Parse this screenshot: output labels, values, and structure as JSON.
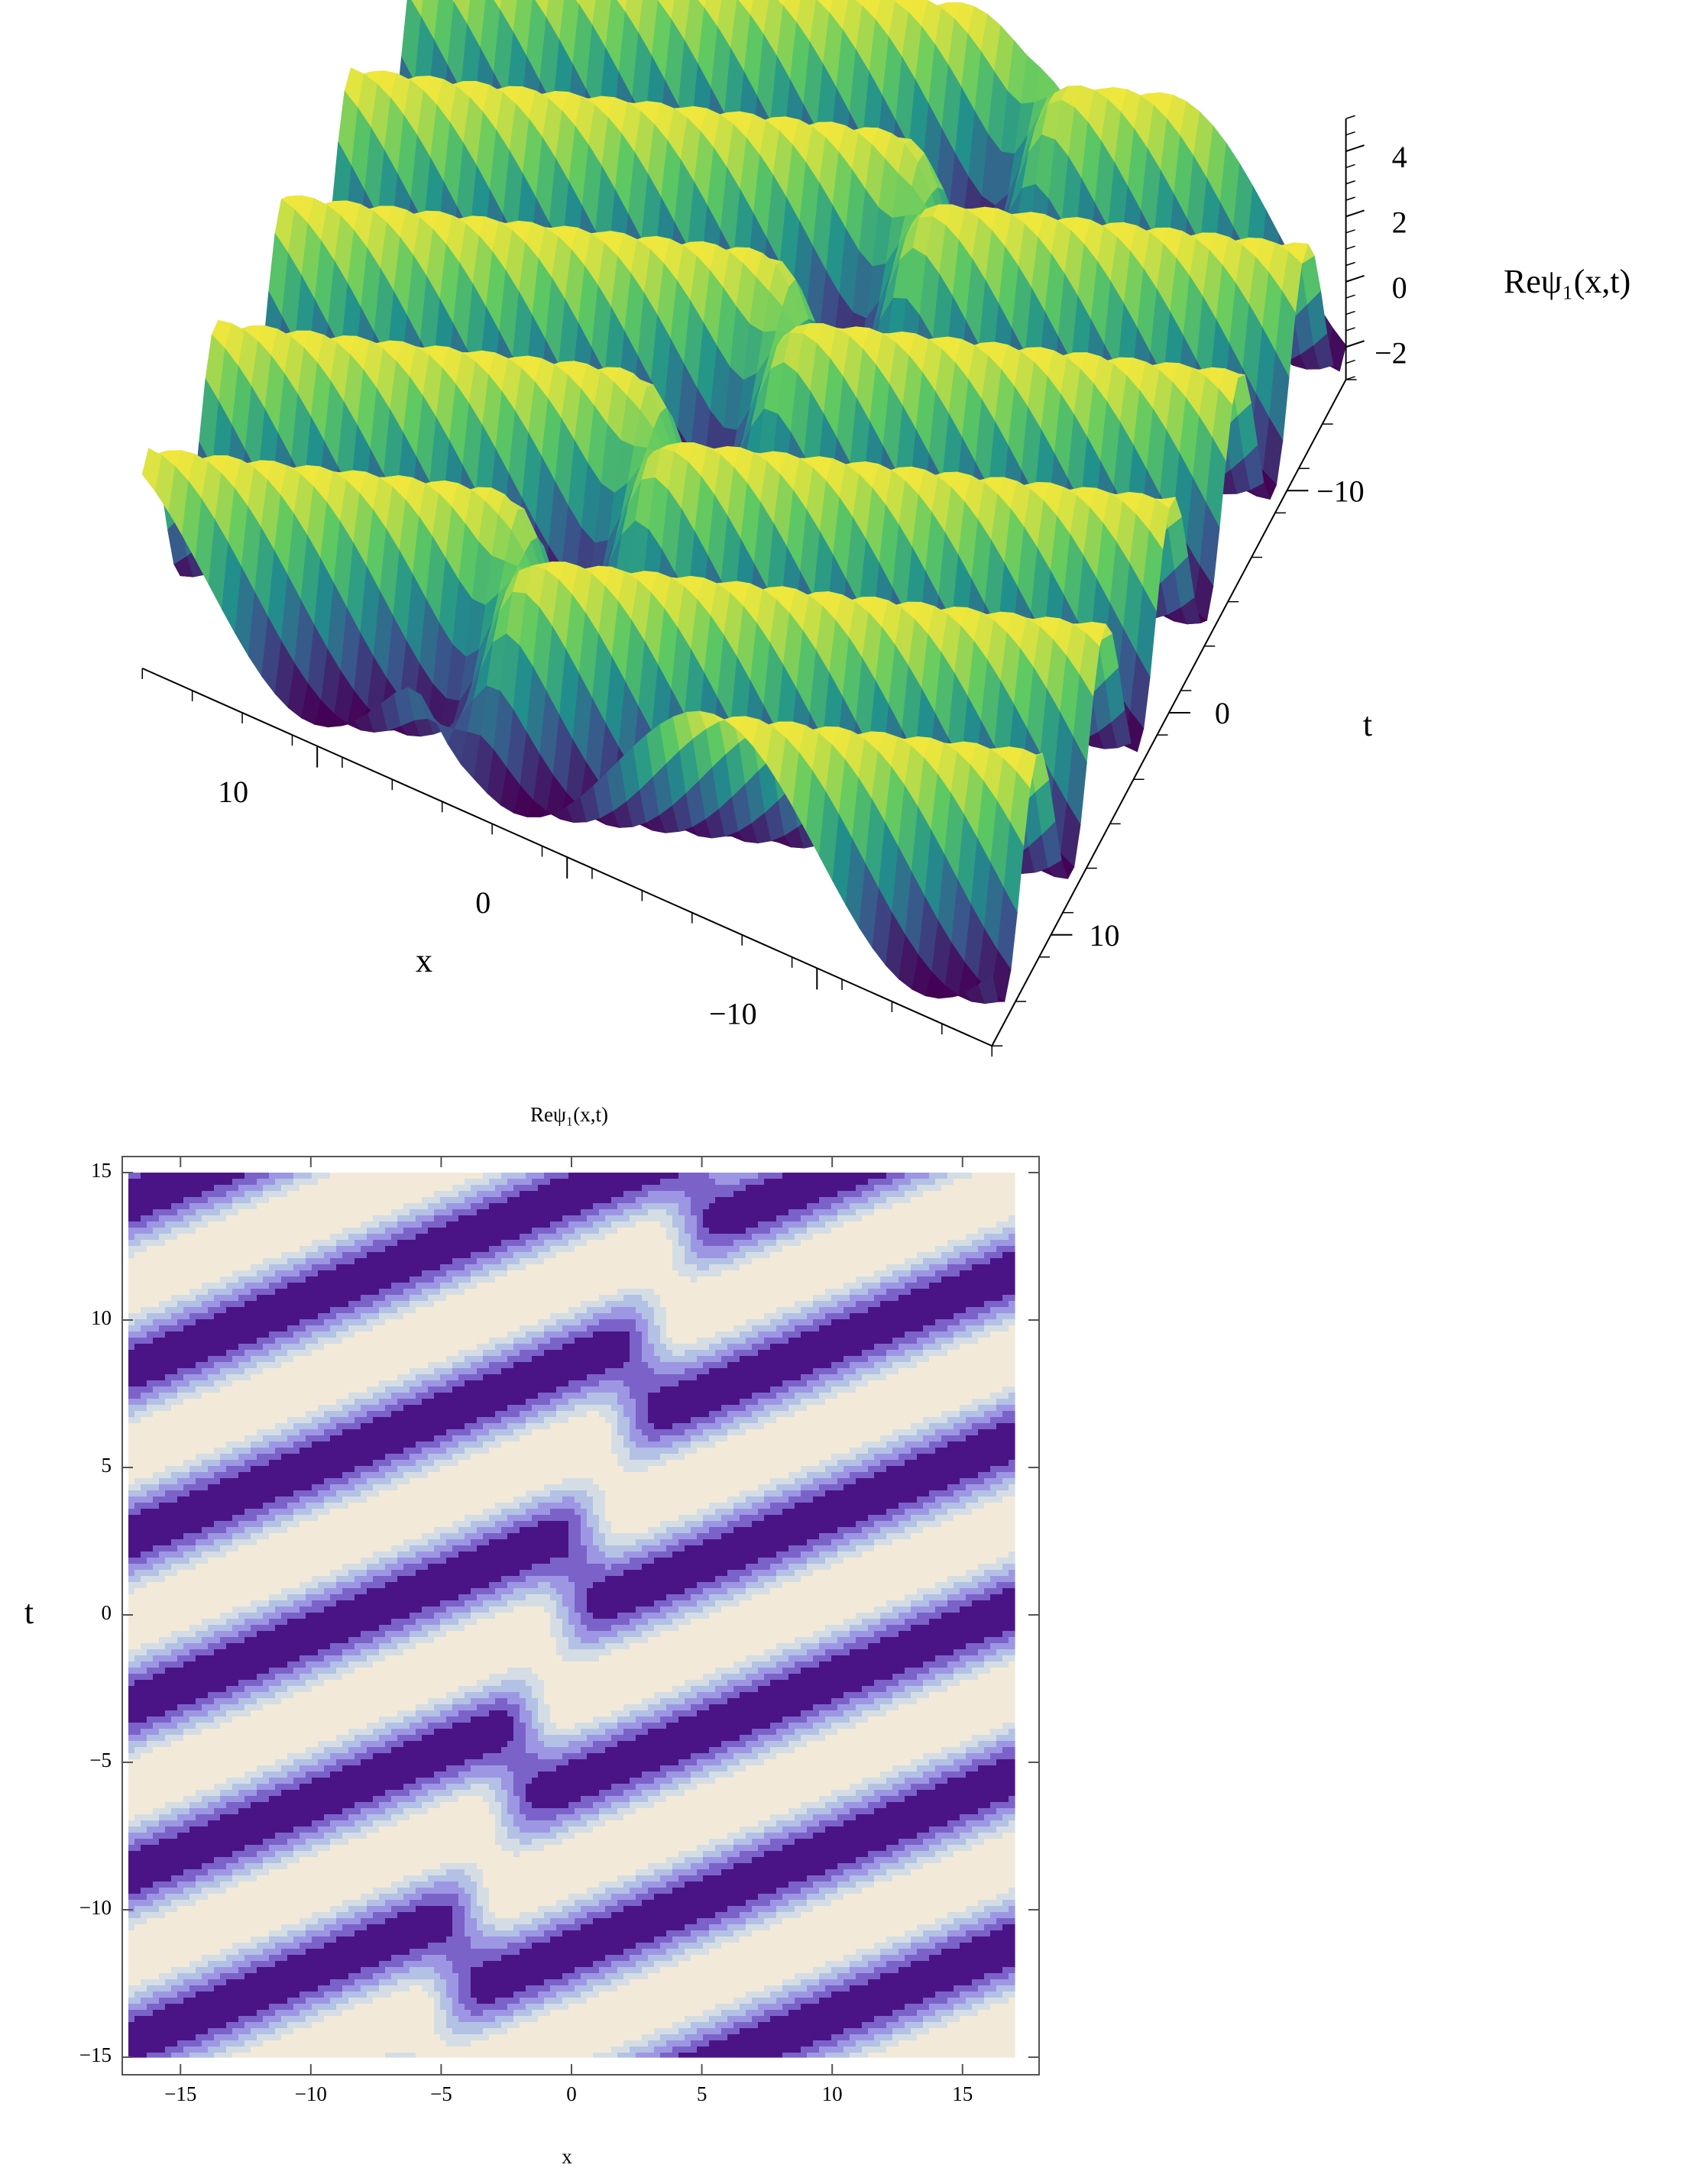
{
  "chart_data": [
    {
      "type": "surface",
      "xlabel": "x",
      "ylabel": "t",
      "zlabel": "Reψ₁(x,t)",
      "xlim": [
        -17,
        17
      ],
      "ylim": [
        -15,
        15
      ],
      "zlim": [
        -3,
        5
      ],
      "xticks": [
        {
          "value": -10,
          "label": "−10"
        },
        0,
        10
      ],
      "yticks": [
        {
          "value": -10,
          "label": "−10"
        },
        0,
        10
      ],
      "zticks": [
        {
          "value": -2,
          "label": "−2"
        },
        0,
        2,
        4
      ]
    },
    {
      "type": "contour",
      "title": "Reψ₁(x,t)",
      "xlabel": "x",
      "ylabel": "t",
      "xlim": [
        -17,
        17
      ],
      "ylim": [
        -15,
        15
      ],
      "xticks": [
        {
          "value": -15,
          "label": "−15"
        },
        {
          "value": -10,
          "label": "−10"
        },
        {
          "value": -5,
          "label": "−5"
        },
        0,
        5,
        10,
        15
      ],
      "yticks": [
        {
          "value": -15,
          "label": "−15"
        },
        {
          "value": -10,
          "label": "−10"
        },
        {
          "value": -5,
          "label": "−5"
        },
        0,
        5,
        10,
        15
      ]
    }
  ]
}
